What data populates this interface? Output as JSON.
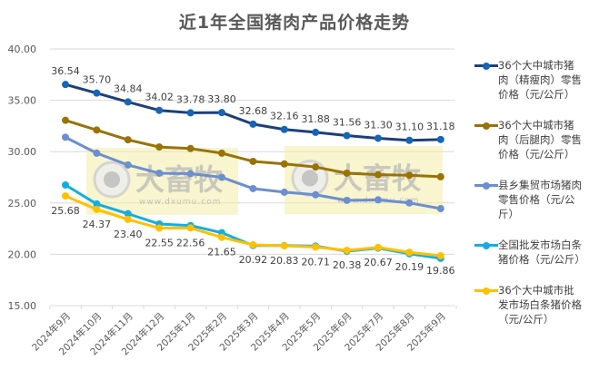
{
  "chart_data": {
    "type": "line",
    "title": "近1年全国猪肉产品价格走势",
    "xlabel": "",
    "ylabel": "",
    "ylim": [
      15,
      40
    ],
    "yticks": [
      "40.00",
      "35.00",
      "30.00",
      "25.00",
      "20.00",
      "15.00"
    ],
    "grid": true,
    "legend_position": "right",
    "categories": [
      "2024年9月",
      "2024年10月",
      "2024年11月",
      "2024年12月",
      "2025年1月",
      "2025年2月",
      "2025年3月",
      "2025年4月",
      "2025年5月",
      "2025年6月",
      "2025年7月",
      "2025年8月",
      "2025年9月"
    ],
    "series": [
      {
        "name": "36个大中城市猪肉（精瘦肉）零售价格（元/公斤）",
        "color": "#1f3f7a",
        "marker_color": "#1565b8",
        "labels_above": true,
        "values": [
          36.54,
          35.7,
          34.84,
          34.02,
          33.78,
          33.8,
          32.68,
          32.16,
          31.88,
          31.56,
          31.3,
          31.1,
          31.18
        ],
        "data_labels": [
          "36.54",
          "35.70",
          "34.84",
          "34.02",
          "33.78",
          "33.80",
          "32.68",
          "32.16",
          "31.88",
          "31.56",
          "31.30",
          "31.10",
          "31.18"
        ]
      },
      {
        "name": "36个大中城市猪肉（后腿肉）零售价格（元/公斤）",
        "color": "#9a7308",
        "marker_color": "#9a7308",
        "values": [
          33.05,
          32.1,
          31.15,
          30.45,
          30.3,
          29.85,
          29.05,
          28.8,
          28.5,
          27.9,
          27.75,
          27.7,
          27.55
        ]
      },
      {
        "name": "县乡集贸市场猪肉零售价格（元/公斤）",
        "color": "#6b8fcf",
        "marker_color": "#6b8fcf",
        "values": [
          31.4,
          29.85,
          28.7,
          27.9,
          27.85,
          27.5,
          26.4,
          26.05,
          25.8,
          25.25,
          25.3,
          25.0,
          24.45
        ]
      },
      {
        "name": "全国批发市场白条猪价格（元/公斤）",
        "color": "#12aee3",
        "marker_color": "#12aee3",
        "values": [
          26.75,
          24.9,
          23.95,
          22.95,
          22.8,
          22.1,
          20.85,
          20.85,
          20.8,
          20.3,
          20.6,
          20.05,
          19.6
        ]
      },
      {
        "name": "36个大中城市批发市场白条猪价格（元/公斤）",
        "color": "#ffc000",
        "marker_color": "#ffc000",
        "labels_below": true,
        "values": [
          25.68,
          24.37,
          23.4,
          22.55,
          22.56,
          21.65,
          20.92,
          20.83,
          20.71,
          20.38,
          20.67,
          20.19,
          19.86
        ],
        "data_labels": [
          "25.68",
          "24.37",
          "23.40",
          "22.55",
          "22.56",
          "21.65",
          "20.92",
          "20.83",
          "20.71",
          "20.38",
          "20.67",
          "20.19",
          "19.86"
        ]
      }
    ]
  },
  "legend": {
    "items": [
      {
        "label": "36个大中城市猪肉（精瘦肉）零售价格（元/公斤）",
        "color": "#1f3f7a",
        "dot": "#1565b8"
      },
      {
        "label": "36个大中城市猪肉（后腿肉）零售价格（元/公斤）",
        "color": "#9a7308",
        "dot": "#9a7308"
      },
      {
        "label": "县乡集贸市场猪肉零售价格（元/公斤）",
        "color": "#6b8fcf",
        "dot": "#6b8fcf"
      },
      {
        "label": "全国批发市场白条猪价格（元/公斤）",
        "color": "#12aee3",
        "dot": "#12aee3"
      },
      {
        "label": "36个大中城市批发市场白条猪价格（元/公斤）",
        "color": "#ffc000",
        "dot": "#ffc000"
      }
    ]
  },
  "watermark": {
    "brand": "大畜牧",
    "site": "www.dxumu.com"
  }
}
